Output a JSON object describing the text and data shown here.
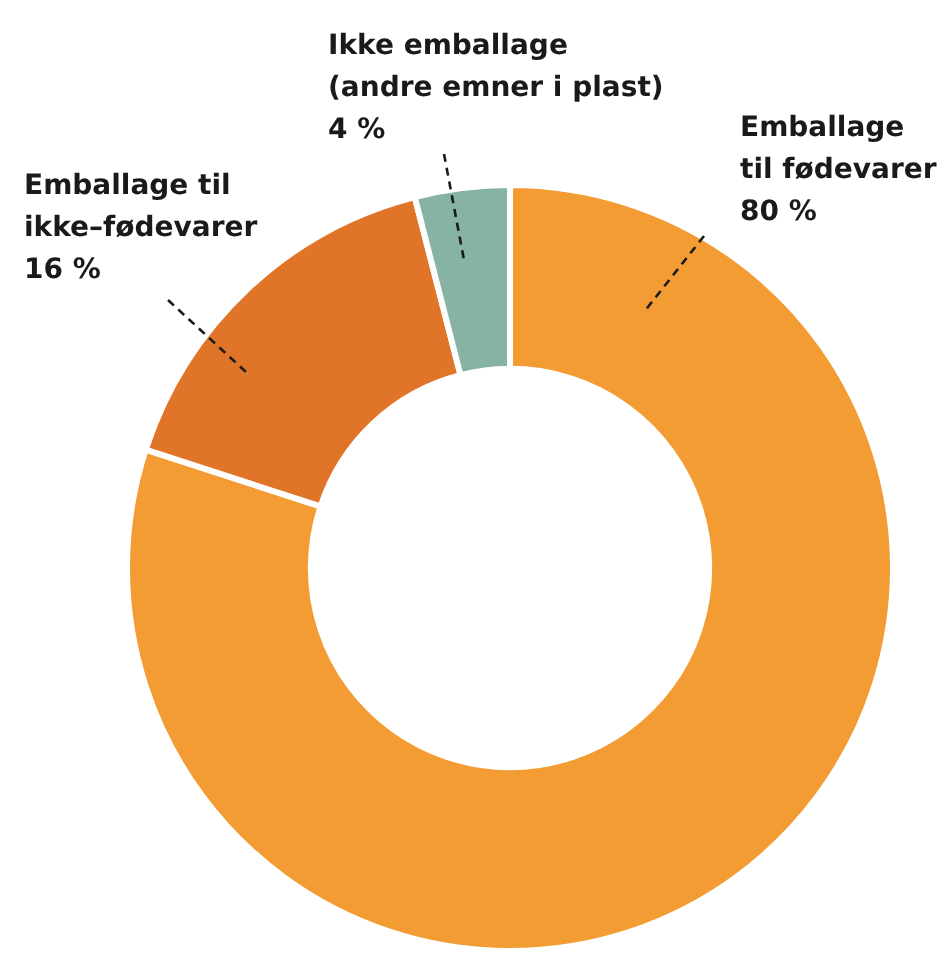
{
  "chart_data": {
    "type": "donut",
    "categories": [
      "Emballage\ntil fødevarer",
      "Emballage til\nikke–fødevarer",
      "Ikke emballage\n(andre emner i plast)"
    ],
    "values": [
      80,
      16,
      4
    ],
    "colors": [
      "#f39c33",
      "#e07428",
      "#86b3a3"
    ],
    "value_labels": [
      "80 %",
      "16 %",
      "4 %"
    ],
    "legend": false
  }
}
